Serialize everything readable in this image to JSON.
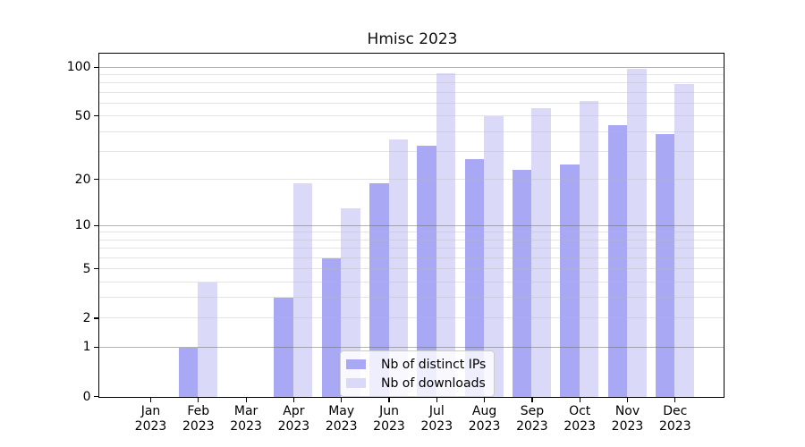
{
  "chart_data": {
    "type": "bar",
    "title": "Hmisc 2023",
    "x_tick_months": [
      "Jan",
      "Feb",
      "Mar",
      "Apr",
      "May",
      "Jun",
      "Jul",
      "Aug",
      "Sep",
      "Oct",
      "Nov",
      "Dec"
    ],
    "x_tick_year": "2023",
    "categories": [
      "Jan 2023",
      "Feb 2023",
      "Mar 2023",
      "Apr 2023",
      "May 2023",
      "Jun 2023",
      "Jul 2023",
      "Aug 2023",
      "Sep 2023",
      "Oct 2023",
      "Nov 2023",
      "Dec 2023"
    ],
    "series": [
      {
        "name": "Nb of distinct IPs",
        "color": "#a8a8f5",
        "values": [
          0,
          1,
          0,
          3,
          6,
          19,
          33,
          27,
          23,
          25,
          44,
          39
        ]
      },
      {
        "name": "Nb of downloads",
        "color": "#dadaf8",
        "values": [
          0,
          4,
          0,
          19,
          13,
          36,
          92,
          50,
          56,
          62,
          98,
          79
        ]
      }
    ],
    "y_scale": "log1p",
    "y_axis_ticks": [
      0,
      1,
      2,
      5,
      10,
      20,
      50,
      100
    ],
    "y_major_gridlines": [
      1,
      10,
      100
    ],
    "y_minor_gridlines": [
      2,
      3,
      4,
      5,
      6,
      7,
      8,
      9,
      20,
      30,
      40,
      50,
      60,
      70,
      80,
      90
    ],
    "ylim": [
      0,
      121
    ],
    "grid": true,
    "legend_position": "lower center"
  },
  "colors": {
    "major_grid": "#b5b5b5",
    "minor_grid": "#e8e8e8",
    "axis": "#000000"
  }
}
